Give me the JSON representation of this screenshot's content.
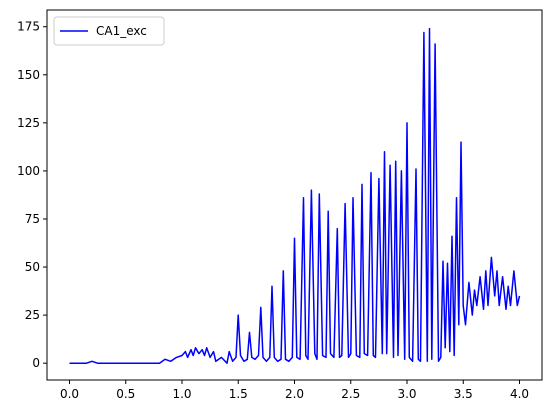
{
  "chart_data": {
    "type": "line",
    "title": "",
    "xlabel": "",
    "ylabel": "",
    "xlim": [
      -0.2,
      4.2
    ],
    "ylim": [
      -8.75,
      183.7
    ],
    "grid": false,
    "legend": {
      "position": "top-left",
      "entries": [
        {
          "name": "CA1_exc",
          "color": "#0000ff"
        }
      ]
    },
    "x_ticks": [
      0.0,
      0.5,
      1.0,
      1.5,
      2.0,
      2.5,
      3.0,
      3.5,
      4.0
    ],
    "x_tick_labels": [
      "0.0",
      "0.5",
      "1.0",
      "1.5",
      "2.0",
      "2.5",
      "3.0",
      "3.5",
      "4.0"
    ],
    "y_ticks": [
      0,
      25,
      50,
      75,
      100,
      125,
      150,
      175
    ],
    "y_tick_labels": [
      "0",
      "25",
      "50",
      "75",
      "100",
      "125",
      "150",
      "175"
    ],
    "series": [
      {
        "name": "CA1_exc",
        "color": "#0000ff",
        "x": [
          0.0,
          0.15,
          0.2,
          0.25,
          0.3,
          0.7,
          0.8,
          0.85,
          0.9,
          0.95,
          1.0,
          1.03,
          1.05,
          1.08,
          1.1,
          1.12,
          1.15,
          1.18,
          1.2,
          1.22,
          1.25,
          1.28,
          1.3,
          1.35,
          1.4,
          1.42,
          1.45,
          1.48,
          1.5,
          1.52,
          1.55,
          1.58,
          1.6,
          1.62,
          1.65,
          1.68,
          1.7,
          1.72,
          1.75,
          1.78,
          1.8,
          1.82,
          1.85,
          1.88,
          1.9,
          1.92,
          1.95,
          1.98,
          2.0,
          2.02,
          2.05,
          2.08,
          2.1,
          2.12,
          2.15,
          2.18,
          2.2,
          2.22,
          2.25,
          2.28,
          2.3,
          2.32,
          2.35,
          2.38,
          2.4,
          2.42,
          2.45,
          2.48,
          2.5,
          2.52,
          2.55,
          2.58,
          2.6,
          2.62,
          2.65,
          2.68,
          2.7,
          2.72,
          2.75,
          2.78,
          2.8,
          2.82,
          2.85,
          2.88,
          2.9,
          2.92,
          2.95,
          2.98,
          3.0,
          3.02,
          3.05,
          3.08,
          3.1,
          3.12,
          3.15,
          3.18,
          3.2,
          3.22,
          3.25,
          3.28,
          3.3,
          3.32,
          3.34,
          3.36,
          3.38,
          3.4,
          3.42,
          3.44,
          3.46,
          3.48,
          3.5,
          3.52,
          3.55,
          3.58,
          3.6,
          3.62,
          3.65,
          3.68,
          3.7,
          3.72,
          3.75,
          3.78,
          3.8,
          3.82,
          3.85,
          3.88,
          3.9,
          3.92,
          3.95,
          3.98,
          4.0
        ],
        "y": [
          0,
          0,
          1,
          0,
          0,
          0,
          0,
          2,
          1,
          3,
          4,
          6,
          3,
          7,
          4,
          8,
          5,
          7,
          4,
          8,
          3,
          6,
          1,
          3,
          0,
          6,
          1,
          3,
          25,
          4,
          1,
          2,
          16,
          3,
          2,
          4,
          29,
          3,
          1,
          3,
          40,
          3,
          1,
          2,
          48,
          2,
          1,
          3,
          65,
          3,
          2,
          86,
          4,
          2,
          90,
          5,
          2,
          88,
          4,
          3,
          79,
          5,
          3,
          70,
          3,
          4,
          83,
          3,
          5,
          86,
          4,
          3,
          93,
          5,
          4,
          99,
          4,
          3,
          96,
          5,
          110,
          5,
          103,
          3,
          105,
          4,
          100,
          2,
          125,
          3,
          1,
          101,
          2,
          1,
          172,
          1,
          174,
          2,
          166,
          1,
          3,
          53,
          8,
          52,
          6,
          66,
          4,
          86,
          20,
          115,
          30,
          20,
          42,
          25,
          38,
          30,
          45,
          28,
          48,
          30,
          55,
          35,
          48,
          30,
          45,
          28,
          40,
          30,
          48,
          30,
          35
        ]
      }
    ]
  }
}
